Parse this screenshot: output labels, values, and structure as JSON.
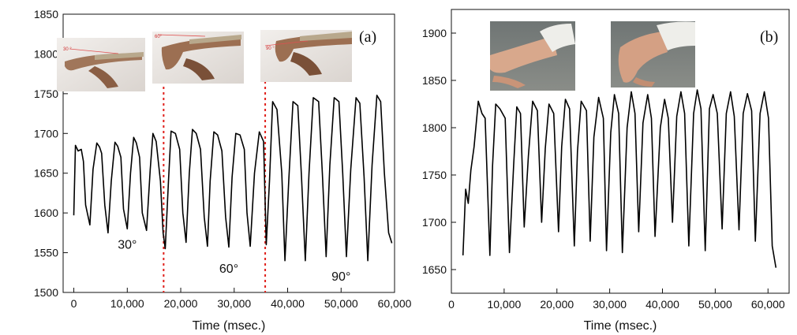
{
  "chart_data": [
    {
      "panel": "(a)",
      "type": "line",
      "xlabel": "Time (msec.)",
      "ylabel": "",
      "xlim": [
        -2000,
        60000
      ],
      "ylim": [
        1500,
        1850
      ],
      "x_ticks": [
        0,
        10000,
        20000,
        30000,
        40000,
        50000,
        60000
      ],
      "x_tick_labels": [
        "0",
        "10,000",
        "20,000",
        "30,000",
        "40,000",
        "50,000",
        "60,000"
      ],
      "y_ticks": [
        1500,
        1550,
        1600,
        1650,
        1700,
        1750,
        1800,
        1850
      ],
      "y_tick_labels": [
        "1500",
        "1550",
        "1600",
        "1650",
        "1700",
        "1750",
        "1800",
        "1850"
      ],
      "annotations": [
        {
          "text": "30°",
          "x": 10000,
          "y": 1555
        },
        {
          "text": "60°",
          "x": 29000,
          "y": 1525
        },
        {
          "text": "90°",
          "x": 50000,
          "y": 1515
        }
      ],
      "dividers": [
        {
          "x": 16800,
          "color": "#e0201b"
        },
        {
          "x": 35800,
          "color": "#e0201b"
        }
      ],
      "insets": [
        "finger bent 30°",
        "finger bent 60°",
        "finger bent 90°"
      ],
      "series": [
        {
          "color": "#000000",
          "x": [
            0,
            300,
            800,
            1400,
            1800,
            2200,
            3000,
            3600,
            4300,
            4800,
            5200,
            5800,
            6400,
            7000,
            7700,
            8200,
            8800,
            9300,
            10000,
            10600,
            11200,
            11700,
            12300,
            12800,
            13600,
            14300,
            14800,
            15400,
            16200,
            16700,
            17100,
            17700,
            18200,
            19000,
            19800,
            20400,
            21000,
            21600,
            22200,
            22900,
            23700,
            24400,
            25000,
            25500,
            26200,
            26900,
            27700,
            28400,
            29000,
            29600,
            30300,
            31100,
            31900,
            32400,
            33000,
            33800,
            34700,
            35500,
            36000,
            36600,
            37200,
            38000,
            38900,
            39500,
            40200,
            41000,
            41900,
            42600,
            43300,
            44000,
            44800,
            45800,
            46500,
            47200,
            47900,
            48700,
            49600,
            50300,
            51000,
            51800,
            52800,
            53500,
            54300,
            55000,
            55800,
            56700,
            57400,
            58100,
            58900,
            59500
          ],
          "y": [
            1597,
            1685,
            1678,
            1680,
            1665,
            1610,
            1585,
            1655,
            1688,
            1683,
            1675,
            1610,
            1575,
            1640,
            1689,
            1684,
            1670,
            1605,
            1580,
            1650,
            1695,
            1688,
            1670,
            1600,
            1578,
            1655,
            1700,
            1690,
            1640,
            1575,
            1555,
            1640,
            1703,
            1700,
            1680,
            1600,
            1563,
            1650,
            1705,
            1700,
            1680,
            1595,
            1558,
            1640,
            1702,
            1698,
            1678,
            1595,
            1557,
            1645,
            1700,
            1698,
            1680,
            1600,
            1558,
            1650,
            1702,
            1690,
            1560,
            1640,
            1740,
            1730,
            1650,
            1540,
            1640,
            1740,
            1735,
            1645,
            1540,
            1650,
            1745,
            1740,
            1650,
            1545,
            1660,
            1745,
            1740,
            1650,
            1545,
            1655,
            1745,
            1738,
            1645,
            1540,
            1660,
            1748,
            1740,
            1650,
            1575,
            1562
          ]
        }
      ]
    },
    {
      "panel": "(b)",
      "type": "line",
      "xlabel": "Time (msec.)",
      "ylabel": "",
      "xlim": [
        0,
        64000
      ],
      "ylim": [
        1625,
        1925
      ],
      "x_ticks": [
        0,
        10000,
        20000,
        30000,
        40000,
        50000,
        60000
      ],
      "x_tick_labels": [
        "0",
        "10,000",
        "20,000",
        "30,000",
        "40,000",
        "50,000",
        "60,000"
      ],
      "y_ticks": [
        1650,
        1700,
        1750,
        1800,
        1850,
        1900
      ],
      "y_tick_labels": [
        "1650",
        "1700",
        "1750",
        "1800",
        "1850",
        "1900"
      ],
      "insets": [
        "wrist bent up",
        "wrist bent down"
      ],
      "series": [
        {
          "color": "#000000",
          "x": [
            2200,
            2700,
            3200,
            3700,
            4300,
            5100,
            5800,
            6400,
            7300,
            7800,
            8400,
            9200,
            10200,
            11000,
            11800,
            12400,
            13100,
            13800,
            14600,
            15400,
            16300,
            17100,
            17800,
            18500,
            19400,
            20300,
            20900,
            21600,
            22400,
            23300,
            23900,
            24600,
            25600,
            26300,
            27000,
            27900,
            28800,
            29400,
            30200,
            30900,
            31700,
            32400,
            33300,
            34100,
            34800,
            35500,
            36300,
            37200,
            37900,
            38600,
            39600,
            40400,
            41100,
            41900,
            42700,
            43500,
            44200,
            45000,
            45900,
            46600,
            47300,
            48100,
            48900,
            49600,
            50400,
            51300,
            52100,
            52900,
            53600,
            54500,
            55300,
            56100,
            56900,
            57600,
            58500,
            59300,
            60100,
            60800,
            61500
          ],
          "y": [
            1665,
            1735,
            1720,
            1755,
            1780,
            1828,
            1815,
            1810,
            1665,
            1760,
            1825,
            1820,
            1810,
            1668,
            1760,
            1822,
            1815,
            1695,
            1770,
            1828,
            1818,
            1700,
            1778,
            1825,
            1815,
            1690,
            1780,
            1830,
            1820,
            1675,
            1775,
            1828,
            1818,
            1680,
            1790,
            1832,
            1810,
            1670,
            1795,
            1835,
            1815,
            1668,
            1800,
            1838,
            1815,
            1690,
            1805,
            1835,
            1810,
            1685,
            1800,
            1830,
            1810,
            1700,
            1812,
            1838,
            1815,
            1675,
            1815,
            1840,
            1820,
            1670,
            1820,
            1835,
            1815,
            1693,
            1815,
            1838,
            1812,
            1692,
            1815,
            1836,
            1818,
            1680,
            1815,
            1838,
            1810,
            1675,
            1652
          ]
        }
      ]
    }
  ]
}
